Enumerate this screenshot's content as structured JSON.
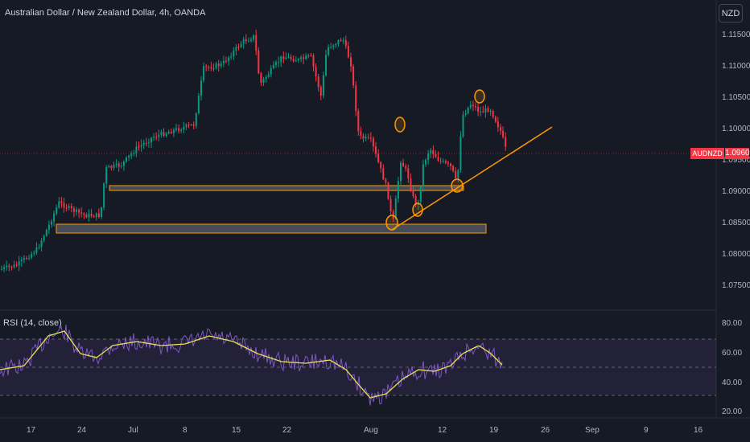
{
  "header": {
    "title": "Australian Dollar / New Zealand Dollar, 4h, OANDA",
    "currency_button": "NZD"
  },
  "price_axis": {
    "labels": [
      "1.11500",
      "1.11000",
      "1.10500",
      "1.10000",
      "1.09500",
      "1.09000",
      "1.08500",
      "1.08000",
      "1.07500"
    ]
  },
  "last_price": {
    "symbol": "AUDNZD",
    "price": "1.09600"
  },
  "rsi": {
    "title": "RSI (14, close)",
    "labels": [
      "80.00",
      "60.00",
      "40.00",
      "20.00"
    ]
  },
  "time_axis": {
    "labels": [
      "17",
      "24",
      "Jul",
      "8",
      "15",
      "22",
      "Aug",
      "12",
      "19",
      "26",
      "Sep",
      "9",
      "16"
    ]
  },
  "colors": {
    "background": "#161a25",
    "up_candle": "#089981",
    "down_candle": "#f23645",
    "zone": "#ff9800",
    "rsi_line": "#7e57c2",
    "rsi_ma": "#e8e05a"
  }
}
